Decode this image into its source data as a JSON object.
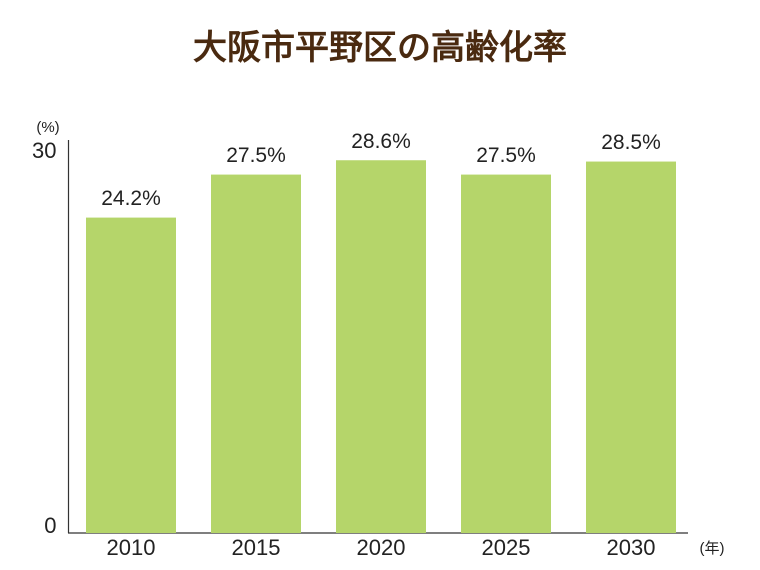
{
  "chart_data": {
    "type": "bar",
    "title": "大阪市平野区の高齢化率",
    "y_label": "(%)",
    "x_label": "(年)",
    "categories": [
      "2010",
      "2015",
      "2020",
      "2025",
      "2030"
    ],
    "values": [
      24.2,
      27.5,
      28.6,
      27.5,
      28.5
    ],
    "value_labels": [
      "24.2%",
      "27.5%",
      "28.6%",
      "27.5%",
      "28.5%"
    ],
    "color": "#b5d56a",
    "ylim": [
      0,
      30
    ],
    "yticks": [
      0,
      30
    ],
    "grid": false
  }
}
